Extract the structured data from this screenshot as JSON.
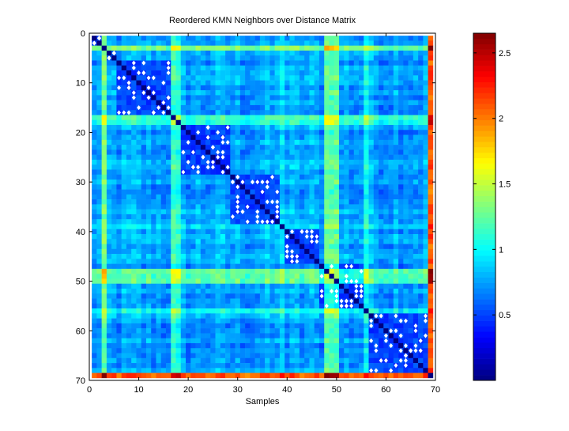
{
  "chart_data": {
    "type": "heatmap",
    "title": "Reordered KMN Neighbors over Distance Matrix",
    "xlabel": "Samples",
    "ylabel": "",
    "n_samples": 69,
    "xlim": [
      0,
      70
    ],
    "ylim": [
      0,
      70
    ],
    "x_ticks": [
      "0",
      "10",
      "20",
      "30",
      "40",
      "50",
      "60",
      "70"
    ],
    "y_ticks": [
      "0",
      "10",
      "20",
      "30",
      "40",
      "50",
      "60",
      "70"
    ],
    "colorbar": {
      "range": [
        0,
        2.65
      ],
      "ticks": [
        "0.5",
        "1",
        "1.5",
        "2",
        "2.5"
      ],
      "colormap": "jet"
    },
    "clusters": [
      [
        1,
        2
      ],
      [
        4,
        5
      ],
      [
        6,
        16
      ],
      [
        19,
        28
      ],
      [
        29,
        38
      ],
      [
        40,
        46
      ],
      [
        47,
        55
      ],
      [
        57,
        68
      ]
    ],
    "default_distance": 0.75,
    "within_cluster_distance": 0.5,
    "sample_offsets": {
      "3": 0.45,
      "17": 0.35,
      "18": 0.25,
      "39": 0.2,
      "48": 0.5,
      "49": 0.55,
      "50": 0.45,
      "56": 0.3,
      "69": 1.35
    },
    "neighbor_marker_color": "#ffffff"
  }
}
